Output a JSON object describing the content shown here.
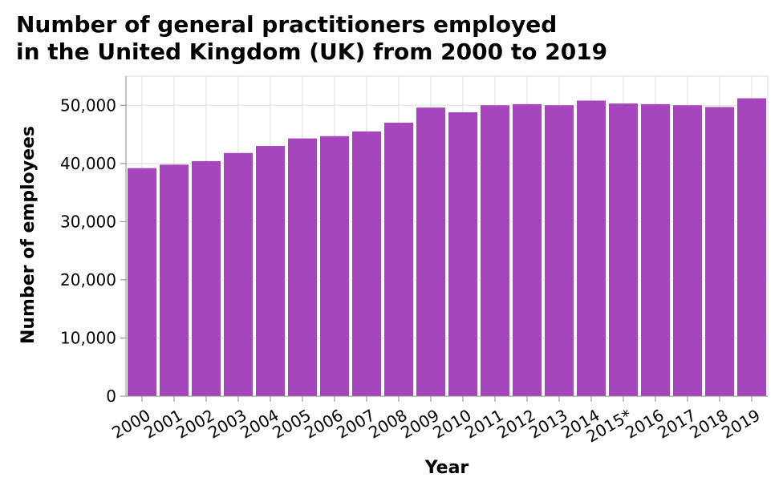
{
  "chart_data": {
    "type": "bar",
    "title_lines": [
      "Number of general practitioners employed",
      "in the United Kingdom (UK) from 2000 to 2019"
    ],
    "xlabel": "Year",
    "ylabel": "Number of employees",
    "categories": [
      "2000",
      "2001",
      "2002",
      "2003",
      "2004",
      "2005",
      "2006",
      "2007",
      "2008",
      "2009",
      "2010",
      "2011",
      "2012",
      "2013",
      "2014",
      "2015*",
      "2016",
      "2017",
      "2018",
      "2019"
    ],
    "values": [
      39200,
      39800,
      40400,
      41800,
      43000,
      44300,
      44700,
      45500,
      47000,
      49600,
      48800,
      50000,
      50200,
      50000,
      50800,
      50300,
      50200,
      50000,
      49700,
      51200
    ],
    "ylim": [
      0,
      55000
    ],
    "yticks": [
      0,
      10000,
      20000,
      30000,
      40000,
      50000
    ],
    "ytick_labels": [
      "0",
      "10,000",
      "20,000",
      "30,000",
      "40,000",
      "50,000"
    ],
    "grid": true,
    "bar_color": "#a646bd",
    "grid_color": "#dddddd"
  }
}
